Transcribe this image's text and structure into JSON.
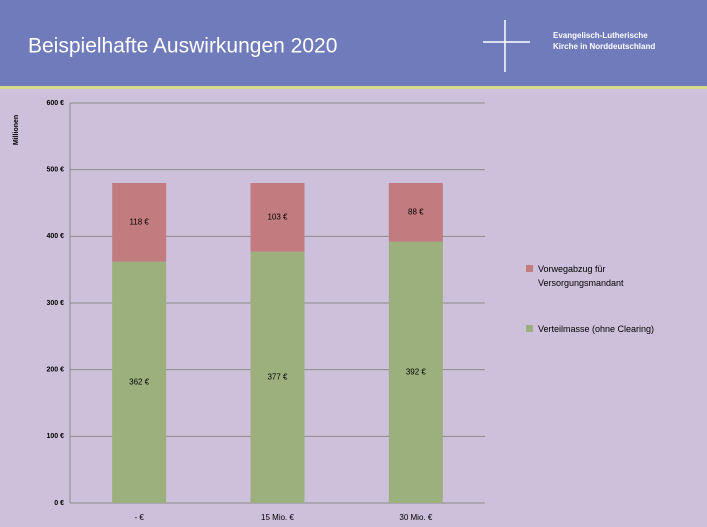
{
  "header": {
    "title": "Beispielhafte Auswirkungen  2020",
    "org": [
      "Evangelisch-Lutherische",
      "Kirche in Norddeutschland"
    ]
  },
  "chart_data": {
    "type": "stacked_bar",
    "y_label": "Millionen",
    "categories": [
      "-  €",
      "15 Mio. €",
      "30 Mio. €"
    ],
    "series": [
      {
        "name": "Verteilmasse (ohne Clearing)",
        "color": "#9bb07c",
        "values": [
          362,
          377,
          392
        ],
        "value_labels": [
          "362 €",
          "377 €",
          "392 €"
        ]
      },
      {
        "name": "Vorwegabzug für Versorgungsmandant",
        "color": "#c27c7f",
        "values": [
          118,
          103,
          88
        ],
        "value_labels": [
          "118 €",
          "103 €",
          "88 €"
        ]
      }
    ],
    "ylim": [
      0,
      600
    ],
    "yticks": [
      {
        "value": 0,
        "label": "0 €"
      },
      {
        "value": 100,
        "label": "100 €"
      },
      {
        "value": 200,
        "label": "200 €"
      },
      {
        "value": 300,
        "label": "300 €"
      },
      {
        "value": 400,
        "label": "400 €"
      },
      {
        "value": 500,
        "label": "500 €"
      },
      {
        "value": 600,
        "label": "600 €"
      }
    ],
    "grid": true
  }
}
